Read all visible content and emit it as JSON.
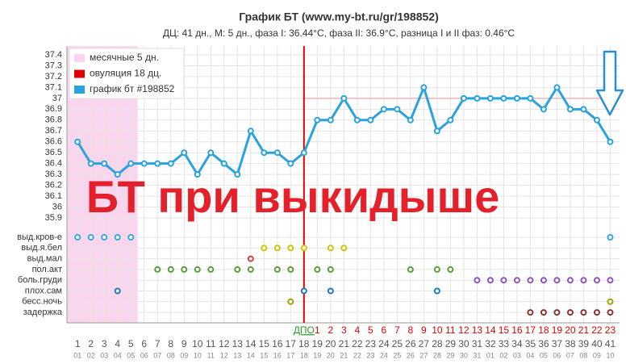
{
  "chart_data": {
    "type": "line",
    "title": "График БТ (www.my-bt.ru/gr/198852)",
    "subtitle": "ДЦ: 41 дн., М: 5 дн., фаза I: 36.44°C, фаза II: 36.9°C, разница I и II фаз: 0.46°C",
    "annotation": "БТ при выкидыше",
    "x": [
      1,
      2,
      3,
      4,
      5,
      6,
      7,
      8,
      9,
      10,
      11,
      12,
      13,
      14,
      15,
      16,
      17,
      18,
      19,
      20,
      21,
      22,
      23,
      24,
      25,
      26,
      27,
      28,
      29,
      30,
      31,
      32,
      33,
      34,
      35,
      36,
      37,
      38,
      39,
      40,
      41
    ],
    "dpo_labels": [
      null,
      null,
      null,
      null,
      null,
      null,
      null,
      null,
      null,
      null,
      null,
      null,
      null,
      null,
      null,
      null,
      null,
      "ДПО",
      "1",
      "2",
      "3",
      "4",
      "5",
      "6",
      "7",
      "8",
      "9",
      "10",
      "11",
      "12",
      "13",
      "14",
      "15",
      "16",
      "17",
      "18",
      "19",
      "20",
      "21",
      "22",
      "23"
    ],
    "dates": [
      "01",
      "02",
      "03",
      "04",
      "05",
      "06",
      "07",
      "08",
      "09",
      "10",
      "11",
      "12",
      "13",
      "14",
      "15",
      "16",
      "17",
      "18",
      "19",
      "20",
      "21",
      "22",
      "23",
      "24",
      "25",
      "26",
      "27",
      "28",
      "29",
      "30",
      "31",
      "01",
      "02",
      "03",
      "04",
      "05",
      "06",
      "07",
      "08",
      "09",
      "10"
    ],
    "series": [
      {
        "name": "график бт #198852",
        "color": "#2aa3dc",
        "values": [
          36.6,
          36.4,
          36.4,
          36.3,
          36.4,
          36.4,
          36.4,
          36.4,
          36.5,
          36.3,
          36.5,
          36.4,
          36.3,
          36.7,
          36.5,
          36.5,
          36.4,
          36.5,
          36.8,
          36.8,
          37.0,
          36.8,
          36.8,
          36.9,
          36.9,
          36.8,
          37.1,
          36.7,
          36.8,
          37.0,
          37.0,
          37.0,
          37.0,
          37.0,
          37.0,
          36.9,
          37.1,
          36.9,
          36.9,
          36.8,
          36.6
        ]
      }
    ],
    "menses": {
      "name": "месячные 5 дн.",
      "color": "#fad6ee",
      "from": 1,
      "to": 5
    },
    "ovulation": {
      "name": "овуляция 18 дц.",
      "color": "#e00000",
      "day": 18
    },
    "coverline": 37,
    "xlim": [
      0.2,
      41.7
    ],
    "ylim": [
      35.9,
      37.4
    ],
    "yticks": [
      35.9,
      36,
      36.1,
      36.2,
      36.3,
      36.4,
      36.5,
      36.6,
      36.7,
      36.8,
      36.9,
      37,
      37.1,
      37.2,
      37.3,
      37.4
    ],
    "grid": true,
    "symptoms": [
      {
        "name": "выд.кров-е",
        "color": "#3aa8dc",
        "days": [
          1,
          2,
          3,
          4,
          5,
          41
        ]
      },
      {
        "name": "выд.я.бел",
        "color": "#c8c800",
        "days": [
          15,
          16,
          17,
          18,
          20,
          21
        ]
      },
      {
        "name": "выд.мал",
        "color": "#d04040",
        "days": [
          14
        ]
      },
      {
        "name": "пол.акт",
        "color": "#5e9a3a",
        "days": [
          7,
          8,
          9,
          10,
          11,
          13,
          14,
          16,
          17,
          19,
          20,
          26,
          28,
          29
        ]
      },
      {
        "name": "боль.груди",
        "color": "#9050c0",
        "days": [
          31,
          32,
          33,
          34,
          35,
          36,
          37,
          38,
          39,
          40,
          41
        ]
      },
      {
        "name": "плох.сам",
        "color": "#2078b8",
        "days": [
          4,
          18,
          20,
          28
        ]
      },
      {
        "name": "бесс.ночь",
        "color": "#a0a000",
        "days": [
          17,
          41
        ]
      },
      {
        "name": "задержка",
        "color": "#8b3030",
        "days": [
          35,
          36,
          37,
          38,
          39,
          40,
          41
        ]
      }
    ]
  }
}
